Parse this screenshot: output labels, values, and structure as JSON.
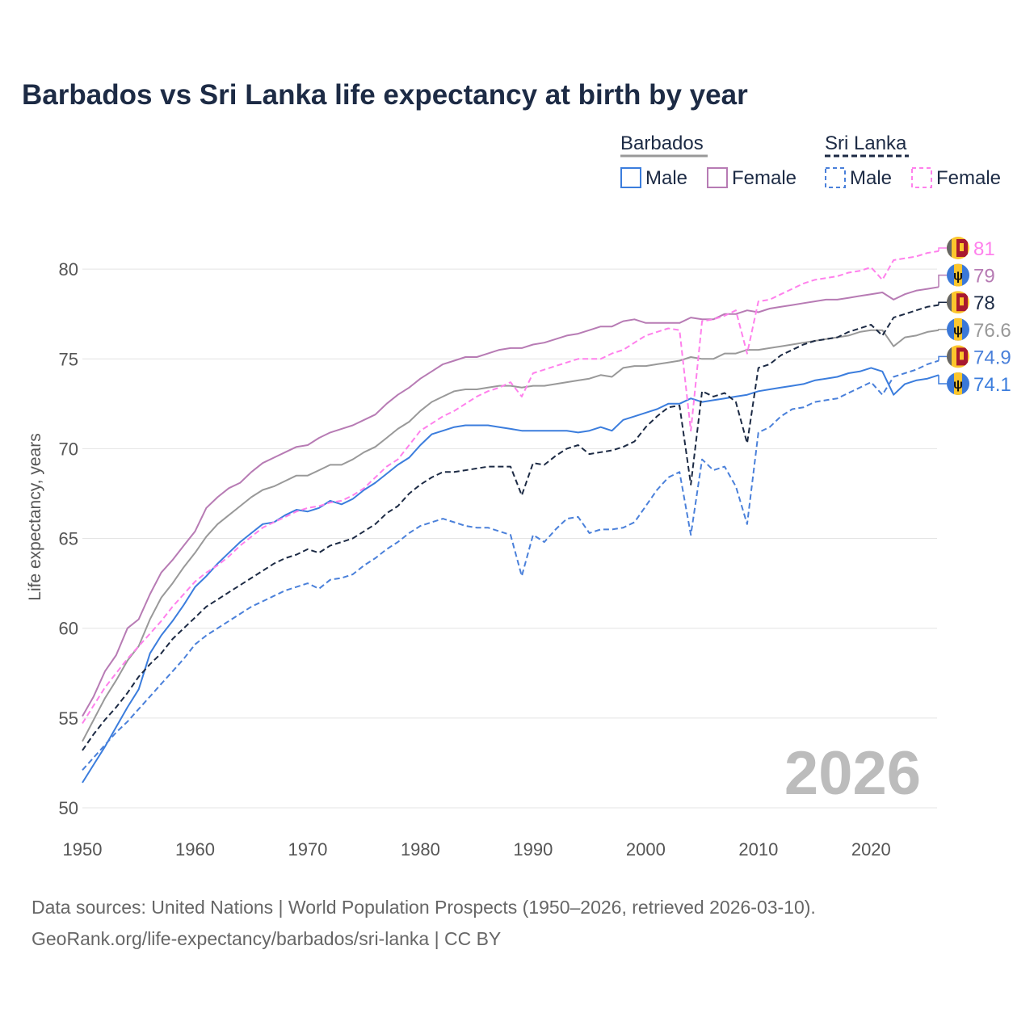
{
  "chart_data": {
    "type": "line",
    "title": "Barbados vs Sri Lanka life expectancy at birth by year",
    "ylabel": "Life expectancy, years",
    "xlabel": "",
    "xlim": [
      1950,
      2026
    ],
    "ylim": [
      50,
      82
    ],
    "grid": true,
    "x_ticks": [
      1950,
      1960,
      1970,
      1980,
      1990,
      2000,
      2010,
      2020
    ],
    "y_ticks": [
      50,
      55,
      60,
      65,
      70,
      75,
      80
    ],
    "year_watermark": "2026",
    "legend": {
      "placement": "top-right",
      "groups": [
        {
          "name": "Barbados",
          "items": [
            "Male",
            "Female"
          ]
        },
        {
          "name": "Sri Lanka",
          "items": [
            "Male",
            "Female"
          ]
        }
      ]
    },
    "x_start": 1950,
    "series": [
      {
        "name": "Barbados Male",
        "country": "Barbados",
        "color": "#3b7ddd",
        "dashed": false,
        "end_label": "74.1",
        "values": [
          51.4,
          52.4,
          53.4,
          54.5,
          55.6,
          56.6,
          58.6,
          59.6,
          60.4,
          61.3,
          62.3,
          62.9,
          63.6,
          64.2,
          64.8,
          65.3,
          65.8,
          65.9,
          66.3,
          66.6,
          66.5,
          66.7,
          67.1,
          66.9,
          67.2,
          67.7,
          68.1,
          68.6,
          69.1,
          69.5,
          70.2,
          70.8,
          71.0,
          71.2,
          71.3,
          71.3,
          71.3,
          71.2,
          71.1,
          71.0,
          71.0,
          71.0,
          71.0,
          71.0,
          70.9,
          71.0,
          71.2,
          71.0,
          71.6,
          71.8,
          72.0,
          72.2,
          72.5,
          72.5,
          72.8,
          72.6,
          72.7,
          72.8,
          72.9,
          73.0,
          73.2,
          73.3,
          73.4,
          73.5,
          73.6,
          73.8,
          73.9,
          74.0,
          74.2,
          74.3,
          74.5,
          74.3,
          73.0,
          73.6,
          73.8,
          73.9,
          74.1
        ]
      },
      {
        "name": "Barbados Female",
        "country": "Barbados",
        "color": "#b77bb4",
        "dashed": false,
        "end_label": "79",
        "values": [
          55.1,
          56.2,
          57.6,
          58.5,
          60.0,
          60.5,
          61.9,
          63.1,
          63.8,
          64.6,
          65.4,
          66.7,
          67.3,
          67.8,
          68.1,
          68.7,
          69.2,
          69.5,
          69.8,
          70.1,
          70.2,
          70.6,
          70.9,
          71.1,
          71.3,
          71.6,
          71.9,
          72.5,
          73.0,
          73.4,
          73.9,
          74.3,
          74.7,
          74.9,
          75.1,
          75.1,
          75.3,
          75.5,
          75.6,
          75.6,
          75.8,
          75.9,
          76.1,
          76.3,
          76.4,
          76.6,
          76.8,
          76.8,
          77.1,
          77.2,
          77.0,
          77.0,
          77.0,
          77.0,
          77.3,
          77.2,
          77.2,
          77.5,
          77.5,
          77.7,
          77.6,
          77.8,
          77.9,
          78.0,
          78.1,
          78.2,
          78.3,
          78.3,
          78.4,
          78.5,
          78.6,
          78.7,
          78.3,
          78.6,
          78.8,
          78.9,
          79.0
        ]
      },
      {
        "name": "Barbados",
        "country": "Barbados",
        "color": "#999999",
        "dashed": false,
        "end_label": "76.6",
        "values": [
          53.7,
          54.9,
          56.1,
          57.1,
          58.2,
          59.0,
          60.5,
          61.7,
          62.5,
          63.4,
          64.2,
          65.1,
          65.8,
          66.3,
          66.8,
          67.3,
          67.7,
          67.9,
          68.2,
          68.5,
          68.5,
          68.8,
          69.1,
          69.1,
          69.4,
          69.8,
          70.1,
          70.6,
          71.1,
          71.5,
          72.1,
          72.6,
          72.9,
          73.2,
          73.3,
          73.3,
          73.4,
          73.5,
          73.5,
          73.4,
          73.5,
          73.5,
          73.6,
          73.7,
          73.8,
          73.9,
          74.1,
          74.0,
          74.5,
          74.6,
          74.6,
          74.7,
          74.8,
          74.9,
          75.1,
          75.0,
          75.0,
          75.3,
          75.3,
          75.5,
          75.5,
          75.6,
          75.7,
          75.8,
          75.9,
          76.0,
          76.1,
          76.2,
          76.3,
          76.5,
          76.6,
          76.6,
          75.7,
          76.2,
          76.3,
          76.5,
          76.6
        ]
      },
      {
        "name": "Sri Lanka",
        "country": "Sri Lanka",
        "color": "#1c2a44",
        "dashed": true,
        "end_label": "78",
        "values": [
          53.2,
          54.1,
          54.9,
          55.6,
          56.4,
          57.3,
          58.0,
          58.6,
          59.4,
          60.0,
          60.6,
          61.2,
          61.6,
          62.0,
          62.4,
          62.8,
          63.2,
          63.6,
          63.9,
          64.1,
          64.4,
          64.2,
          64.6,
          64.8,
          65.0,
          65.4,
          65.8,
          66.4,
          66.8,
          67.5,
          68.0,
          68.4,
          68.7,
          68.7,
          68.8,
          68.9,
          69.0,
          69.0,
          69.0,
          67.4,
          69.2,
          69.1,
          69.6,
          70.0,
          70.2,
          69.7,
          69.8,
          69.9,
          70.1,
          70.4,
          71.2,
          71.8,
          72.3,
          72.4,
          68.0,
          73.2,
          72.9,
          73.1,
          72.6,
          70.3,
          74.5,
          74.7,
          75.2,
          75.5,
          75.8,
          76.0,
          76.1,
          76.2,
          76.5,
          76.7,
          76.9,
          76.3,
          77.3,
          77.5,
          77.7,
          77.9,
          78.0
        ]
      },
      {
        "name": "Sri Lanka Male",
        "country": "Sri Lanka",
        "color": "#4a80da",
        "dashed": true,
        "end_label": "74.9",
        "values": [
          52.1,
          52.8,
          53.5,
          54.2,
          54.8,
          55.5,
          56.2,
          56.9,
          57.6,
          58.3,
          59.1,
          59.6,
          60.0,
          60.4,
          60.8,
          61.2,
          61.5,
          61.8,
          62.1,
          62.3,
          62.5,
          62.2,
          62.7,
          62.8,
          63.0,
          63.5,
          63.9,
          64.4,
          64.8,
          65.3,
          65.7,
          65.9,
          66.1,
          65.9,
          65.7,
          65.6,
          65.6,
          65.4,
          65.2,
          62.9,
          65.2,
          64.8,
          65.5,
          66.1,
          66.2,
          65.3,
          65.5,
          65.5,
          65.6,
          65.9,
          66.8,
          67.7,
          68.4,
          68.7,
          65.2,
          69.4,
          68.8,
          69.0,
          67.9,
          65.8,
          70.9,
          71.2,
          71.8,
          72.2,
          72.3,
          72.6,
          72.7,
          72.8,
          73.1,
          73.4,
          73.7,
          73.0,
          74.0,
          74.2,
          74.4,
          74.7,
          74.9
        ]
      },
      {
        "name": "Sri Lanka Female",
        "country": "Sri Lanka",
        "color": "#ff80ec",
        "dashed": true,
        "end_label": "81",
        "values": [
          54.7,
          55.7,
          56.7,
          57.5,
          58.3,
          59.0,
          59.7,
          60.4,
          61.2,
          61.9,
          62.6,
          63.1,
          63.5,
          64.0,
          64.6,
          65.1,
          65.6,
          65.9,
          66.2,
          66.5,
          66.7,
          66.8,
          67.0,
          67.1,
          67.4,
          67.8,
          68.4,
          69.0,
          69.4,
          70.2,
          71.0,
          71.4,
          71.8,
          72.1,
          72.5,
          72.9,
          73.2,
          73.4,
          73.7,
          72.9,
          74.2,
          74.4,
          74.6,
          74.8,
          75.0,
          75.0,
          75.0,
          75.3,
          75.5,
          75.9,
          76.3,
          76.5,
          76.7,
          76.6,
          71.0,
          77.1,
          77.2,
          77.4,
          77.7,
          75.3,
          78.2,
          78.3,
          78.6,
          78.9,
          79.2,
          79.4,
          79.5,
          79.6,
          79.8,
          79.9,
          80.1,
          79.4,
          80.5,
          80.6,
          80.7,
          80.9,
          81.0
        ]
      }
    ]
  },
  "footer": {
    "line1": "Data sources: United Nations | World Population Prospects (1950–2026, retrieved 2026-03-10).",
    "line2": "GeoRank.org/life-expectancy/barbados/sri-lanka | CC BY"
  }
}
